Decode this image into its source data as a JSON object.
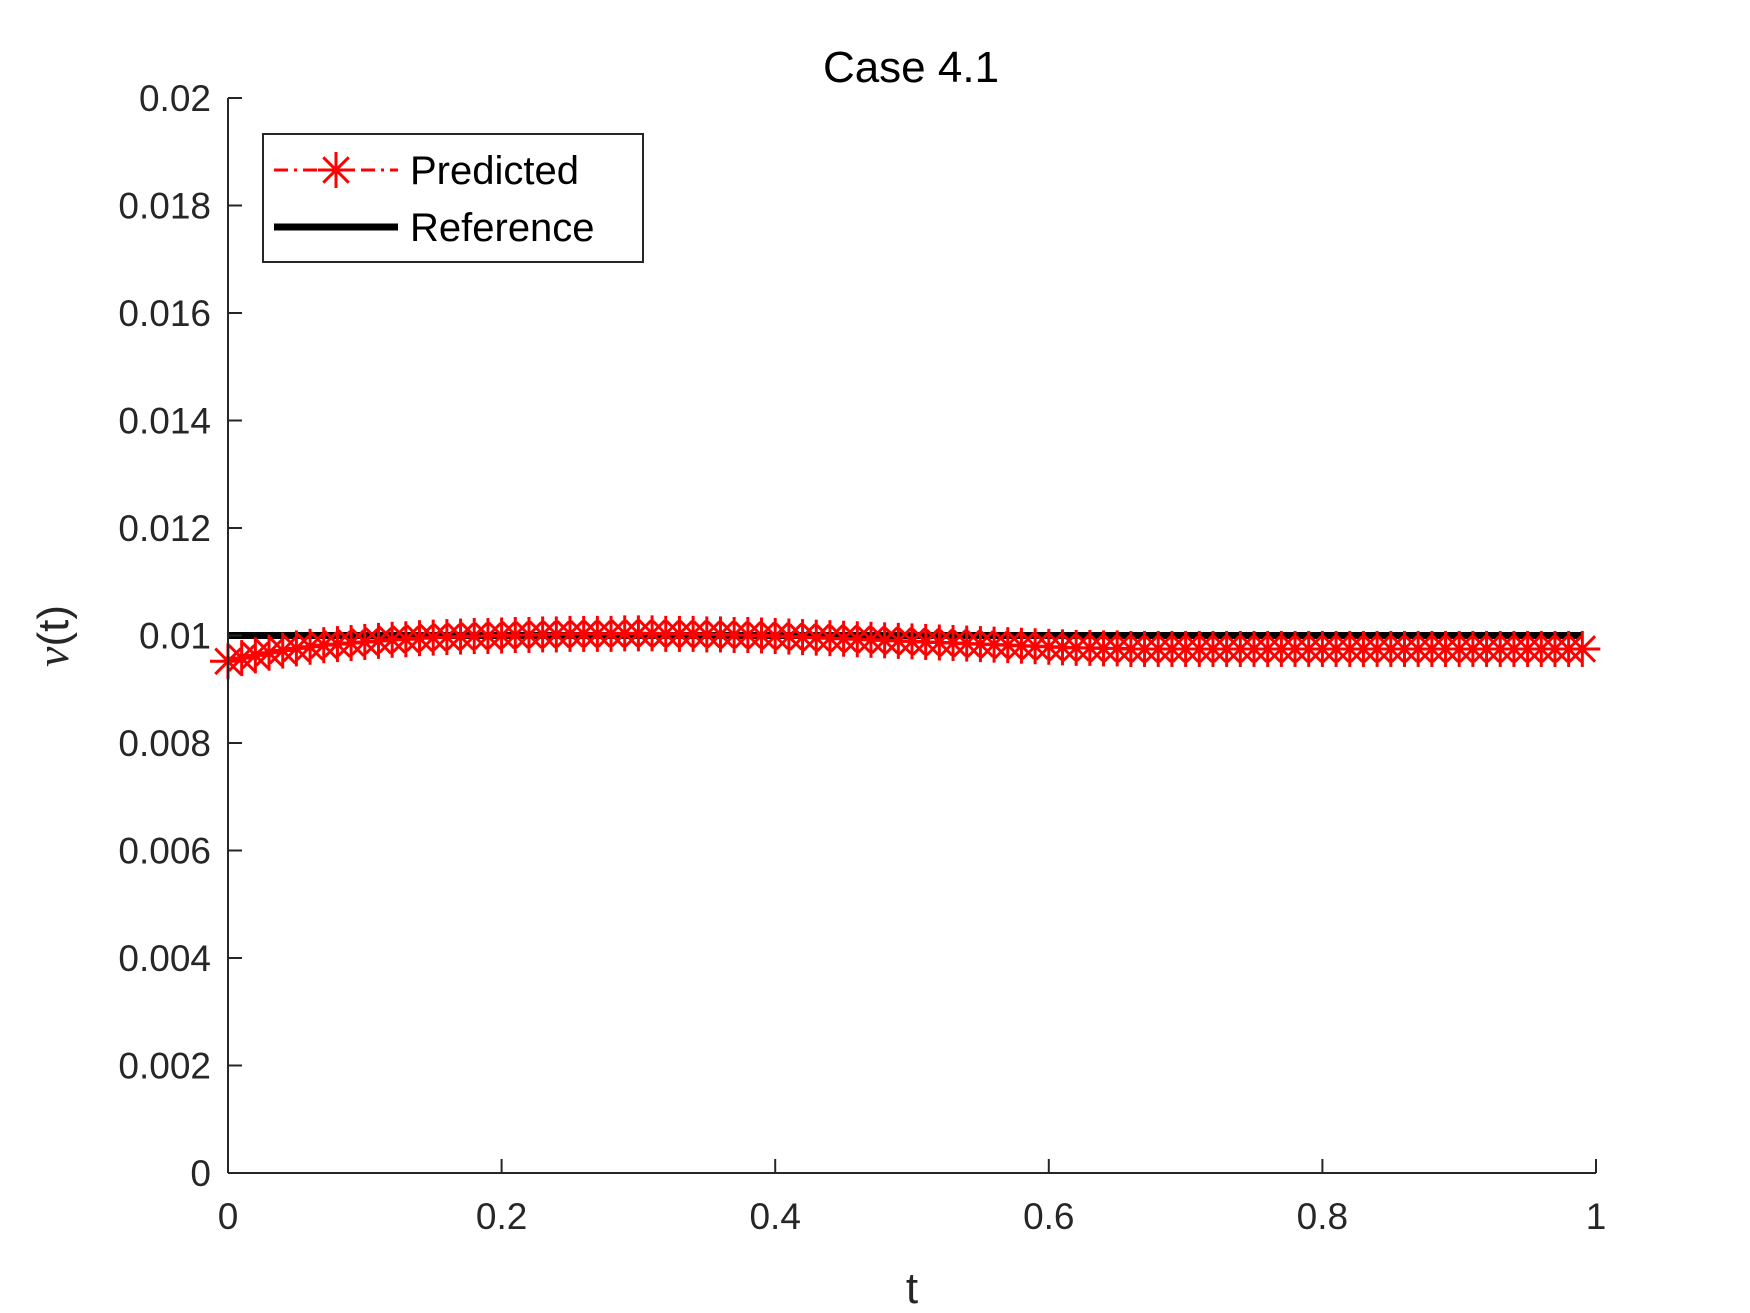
{
  "chart_data": {
    "type": "line",
    "title": "Case 4.1",
    "xlabel": "t",
    "ylabel": {
      "symbol": "ν",
      "suffix": "(t)"
    },
    "xlim": [
      0,
      1
    ],
    "ylim": [
      0,
      0.02
    ],
    "xticks": [
      0,
      0.2,
      0.4,
      0.6,
      0.8,
      1
    ],
    "xtick_labels": [
      "0",
      "0.2",
      "0.4",
      "0.6",
      "0.8",
      "1"
    ],
    "yticks": [
      0,
      0.002,
      0.004,
      0.006,
      0.008,
      0.01,
      0.012,
      0.014,
      0.016,
      0.018,
      0.02
    ],
    "ytick_labels": [
      "0",
      "0.002",
      "0.004",
      "0.006",
      "0.008",
      "0.01",
      "0.012",
      "0.014",
      "0.016",
      "0.018",
      "0.02"
    ],
    "grid": false,
    "legend_position": "top-left",
    "series": [
      {
        "name": "Predicted",
        "color": "#ff0000",
        "line_style": "dash-dot",
        "marker": "asterisk",
        "x_start": 0,
        "x_step": 0.01,
        "y": [
          0.00952,
          0.00958,
          0.00963,
          0.00968,
          0.00972,
          0.00976,
          0.00979,
          0.00982,
          0.00984,
          0.00986,
          0.00988,
          0.0099,
          0.00992,
          0.00993,
          0.00995,
          0.00996,
          0.00997,
          0.00998,
          0.00999,
          0.00999,
          0.01,
          0.01001,
          0.01001,
          0.01002,
          0.01002,
          0.01003,
          0.01003,
          0.01003,
          0.01003,
          0.01004,
          0.01004,
          0.01004,
          0.01003,
          0.01003,
          0.01003,
          0.01002,
          0.01002,
          0.01001,
          0.01001,
          0.01,
          0.00999,
          0.00998,
          0.00997,
          0.00996,
          0.00995,
          0.00994,
          0.00993,
          0.00992,
          0.00991,
          0.0099,
          0.00989,
          0.00988,
          0.00987,
          0.00986,
          0.00985,
          0.00984,
          0.00983,
          0.00982,
          0.00981,
          0.0098,
          0.00979,
          0.00978,
          0.00977,
          0.00977,
          0.00976,
          0.00976,
          0.00975,
          0.00975,
          0.00975,
          0.00975,
          0.00975,
          0.00975,
          0.00975,
          0.00975,
          0.00975,
          0.00975,
          0.00975,
          0.00975,
          0.00975,
          0.00975,
          0.00975,
          0.00975,
          0.00975,
          0.00975,
          0.00975,
          0.00975,
          0.00975,
          0.00975,
          0.00975,
          0.00975,
          0.00975,
          0.00975,
          0.00975,
          0.00975,
          0.00975,
          0.00975,
          0.00975,
          0.00975,
          0.00975,
          0.00975
        ]
      },
      {
        "name": "Reference",
        "color": "#000000",
        "line_style": "solid",
        "marker": "none",
        "x": [
          0,
          0.99
        ],
        "y": [
          0.01,
          0.01
        ]
      }
    ]
  }
}
